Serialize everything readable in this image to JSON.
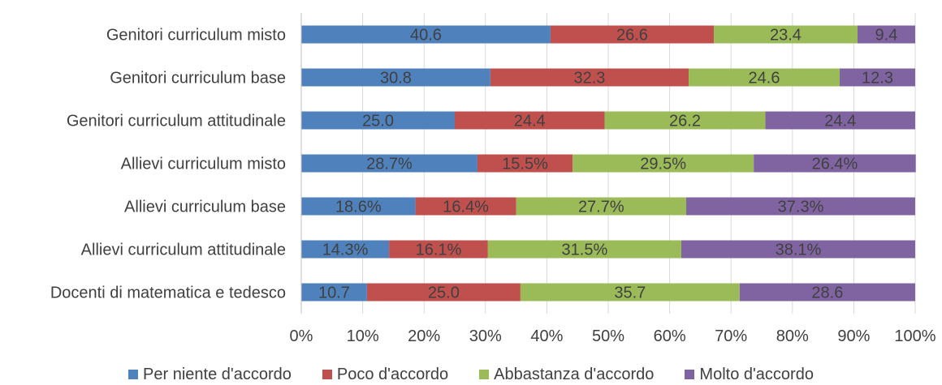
{
  "chart_data": {
    "type": "bar",
    "orientation": "horizontal",
    "stacked": "percent",
    "categories": [
      "Genitori curriculum misto",
      "Genitori curriculum base",
      "Genitori curriculum attitudinale",
      "Allievi curriculum misto",
      "Allievi curriculum base",
      "Allievi curriculum attitudinale",
      "Docenti di matematica e tedesco"
    ],
    "series": [
      {
        "name": "Per niente d'accordo",
        "color": "#4f81bd",
        "values": [
          40.6,
          30.8,
          25.0,
          28.7,
          18.6,
          14.3,
          10.7
        ],
        "labels": [
          "40.6",
          "30.8",
          "25.0",
          "28.7%",
          "18.6%",
          "14.3%",
          "10.7"
        ]
      },
      {
        "name": "Poco d'accordo",
        "color": "#c0504d",
        "values": [
          26.6,
          32.3,
          24.4,
          15.5,
          16.4,
          16.1,
          25.0
        ],
        "labels": [
          "26.6",
          "32.3",
          "24.4",
          "15.5%",
          "16.4%",
          "16.1%",
          "25.0"
        ]
      },
      {
        "name": "Abbastanza d'accordo",
        "color": "#9bbb59",
        "values": [
          23.4,
          24.6,
          26.2,
          29.5,
          27.7,
          31.5,
          35.7
        ],
        "labels": [
          "23.4",
          "24.6",
          "26.2",
          "29.5%",
          "27.7%",
          "31.5%",
          "35.7"
        ]
      },
      {
        "name": "Molto d'accordo",
        "color": "#8064a2",
        "values": [
          9.4,
          12.3,
          24.4,
          26.4,
          37.3,
          38.1,
          28.6
        ],
        "labels": [
          "9.4",
          "12.3",
          "24.4",
          "26.4%",
          "37.3%",
          "38.1%",
          "28.6"
        ]
      }
    ],
    "x_ticks": [
      "0%",
      "10%",
      "20%",
      "30%",
      "40%",
      "50%",
      "60%",
      "70%",
      "80%",
      "90%",
      "100%"
    ],
    "xlim": [
      0,
      100
    ],
    "grid": "vertical",
    "legend_position": "bottom"
  }
}
